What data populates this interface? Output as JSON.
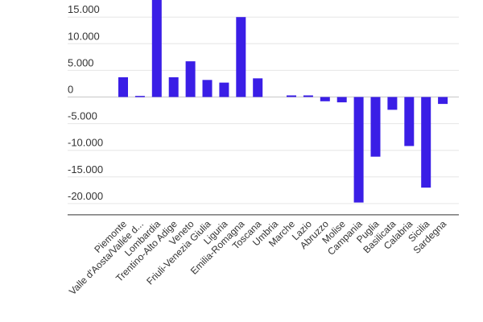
{
  "chart_data": {
    "type": "bar",
    "title": "",
    "xlabel": "",
    "ylabel": "",
    "ylim": [
      -21500,
      20000
    ],
    "yticks": [
      {
        "value": 15000,
        "label": "15.000"
      },
      {
        "value": 10000,
        "label": "10.000"
      },
      {
        "value": 5000,
        "label": "5.000"
      },
      {
        "value": 0,
        "label": "0"
      },
      {
        "value": -5000,
        "label": "-5.000"
      },
      {
        "value": -10000,
        "label": "-10.000"
      },
      {
        "value": -15000,
        "label": "-15.000"
      },
      {
        "value": -20000,
        "label": "-20.000"
      }
    ],
    "categories": [
      "Piemonte",
      "Valle d'Aosta/Vallée d...",
      "Lombardia",
      "Trentino-Alto Adige",
      "Veneto",
      "Friuli-Venezia Giulia",
      "Liguria",
      "Emilia-Romagna",
      "Toscana",
      "Umbria",
      "Marche",
      "Lazio",
      "Abruzzo",
      "Molise",
      "Campania",
      "Puglia",
      "Basilicata",
      "Calabria",
      "Sicilia",
      "Sardegna"
    ],
    "values": [
      3700,
      200,
      19000,
      3700,
      6700,
      3200,
      2700,
      15000,
      3500,
      0,
      300,
      300,
      -800,
      -1000,
      -19800,
      -11200,
      -2400,
      -9200,
      -17000,
      -1300
    ],
    "bar_color": "#3a1ee6",
    "grid": true,
    "legend": "none"
  }
}
